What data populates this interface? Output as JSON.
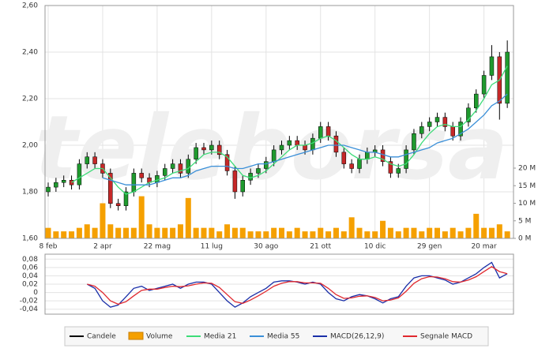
{
  "watermark": "teleborsa",
  "chart_data": [
    {
      "type": "candlestick",
      "categories": [
        "8 feb",
        null,
        null,
        null,
        null,
        null,
        null,
        "2 apr",
        null,
        null,
        null,
        null,
        null,
        null,
        "22 mag",
        null,
        null,
        null,
        null,
        null,
        null,
        "11 lug",
        null,
        null,
        null,
        null,
        null,
        null,
        "30 ago",
        null,
        null,
        null,
        null,
        null,
        null,
        "21 ott",
        null,
        null,
        null,
        null,
        null,
        null,
        "10 dic",
        null,
        null,
        null,
        null,
        null,
        null,
        "29 gen",
        null,
        null,
        null,
        null,
        null,
        null,
        "20 mar",
        null,
        null,
        null
      ],
      "candles": {
        "name": "Candele",
        "color": "#000000",
        "up_color": "#1f9a2e",
        "down_color": "#c62828",
        "open": [
          1.8,
          1.82,
          1.84,
          1.85,
          1.83,
          1.92,
          1.95,
          1.92,
          1.88,
          1.75,
          1.74,
          1.8,
          1.88,
          1.86,
          1.84,
          1.87,
          1.9,
          1.92,
          1.88,
          1.94,
          1.99,
          1.98,
          2.0,
          1.96,
          1.89,
          1.8,
          1.85,
          1.88,
          1.9,
          1.93,
          1.98,
          2.0,
          2.02,
          2.0,
          1.98,
          2.03,
          2.08,
          2.04,
          1.97,
          1.92,
          1.9,
          1.94,
          1.97,
          1.98,
          1.93,
          1.88,
          1.9,
          1.98,
          2.05,
          2.08,
          2.1,
          2.12,
          2.08,
          2.04,
          2.1,
          2.16,
          2.22,
          2.3,
          2.38,
          2.18
        ],
        "high": [
          1.84,
          1.86,
          1.87,
          1.87,
          1.94,
          1.97,
          1.97,
          1.94,
          1.9,
          1.77,
          1.82,
          1.9,
          1.9,
          1.88,
          1.89,
          1.92,
          1.94,
          1.94,
          1.96,
          2.01,
          2.01,
          2.02,
          2.02,
          1.98,
          1.91,
          1.87,
          1.9,
          1.92,
          1.95,
          2.0,
          2.02,
          2.04,
          2.04,
          2.02,
          2.05,
          2.1,
          2.1,
          2.06,
          1.99,
          1.94,
          1.96,
          1.99,
          2.0,
          2.0,
          1.95,
          1.92,
          2.0,
          2.07,
          2.1,
          2.12,
          2.14,
          2.14,
          2.1,
          2.12,
          2.18,
          2.24,
          2.32,
          2.43,
          2.4,
          2.45
        ],
        "low": [
          1.78,
          1.8,
          1.82,
          1.81,
          1.81,
          1.9,
          1.9,
          1.86,
          1.73,
          1.72,
          1.72,
          1.78,
          1.84,
          1.82,
          1.82,
          1.85,
          1.88,
          1.86,
          1.86,
          1.92,
          1.96,
          1.96,
          1.94,
          1.87,
          1.77,
          1.78,
          1.83,
          1.86,
          1.88,
          1.91,
          1.96,
          1.98,
          1.98,
          1.96,
          1.96,
          2.01,
          2.02,
          1.95,
          1.9,
          1.88,
          1.88,
          1.92,
          1.95,
          1.91,
          1.86,
          1.86,
          1.88,
          1.96,
          2.03,
          2.06,
          2.08,
          2.06,
          2.02,
          2.02,
          2.08,
          2.14,
          2.2,
          2.28,
          2.11,
          2.16
        ],
        "close": [
          1.82,
          1.84,
          1.85,
          1.83,
          1.92,
          1.95,
          1.92,
          1.88,
          1.75,
          1.74,
          1.8,
          1.88,
          1.86,
          1.84,
          1.87,
          1.9,
          1.92,
          1.88,
          1.94,
          1.99,
          1.98,
          2.0,
          1.96,
          1.89,
          1.8,
          1.85,
          1.88,
          1.9,
          1.93,
          1.98,
          2.0,
          2.02,
          2.0,
          1.98,
          2.03,
          2.08,
          2.04,
          1.97,
          1.92,
          1.9,
          1.94,
          1.97,
          1.98,
          1.93,
          1.88,
          1.9,
          1.98,
          2.05,
          2.08,
          2.1,
          2.12,
          2.08,
          2.04,
          2.1,
          2.16,
          2.22,
          2.3,
          2.38,
          2.18,
          2.4
        ]
      },
      "volume": {
        "name": "Volume",
        "color": "#f5a000",
        "axis": "y2",
        "values": [
          3,
          2,
          2,
          2,
          3,
          4,
          3,
          10,
          4,
          3,
          3,
          3,
          12,
          4,
          3,
          3,
          3,
          4,
          11.5,
          3,
          3,
          3,
          2,
          4,
          3,
          3,
          2,
          2,
          2,
          3,
          3,
          2,
          3,
          2,
          2,
          3,
          2,
          3,
          2,
          6,
          3,
          2,
          2,
          5,
          3,
          2,
          3,
          3,
          2,
          3,
          3,
          2,
          3,
          2,
          3,
          7,
          3,
          3,
          4,
          2
        ]
      },
      "series": [
        {
          "name": "Media 21",
          "color": "#3ddc78",
          "values": [
            null,
            null,
            null,
            1.84,
            1.86,
            1.88,
            1.9,
            1.9,
            1.86,
            1.82,
            1.79,
            1.8,
            1.82,
            1.84,
            1.85,
            1.86,
            1.88,
            1.89,
            1.9,
            1.93,
            1.96,
            1.97,
            1.97,
            1.95,
            1.91,
            1.87,
            1.86,
            1.87,
            1.89,
            1.92,
            1.95,
            1.98,
            2.0,
            2.0,
            2.01,
            2.03,
            2.04,
            2.02,
            1.99,
            1.96,
            1.94,
            1.94,
            1.95,
            1.94,
            1.92,
            1.91,
            1.92,
            1.96,
            2.01,
            2.05,
            2.08,
            2.09,
            2.08,
            2.08,
            2.11,
            2.15,
            2.2,
            2.26,
            2.28,
            2.34
          ]
        },
        {
          "name": "Media 55",
          "color": "#3a8fd8",
          "values": [
            null,
            null,
            null,
            null,
            null,
            null,
            null,
            1.86,
            1.85,
            1.84,
            1.83,
            1.83,
            1.83,
            1.83,
            1.84,
            1.85,
            1.86,
            1.86,
            1.87,
            1.89,
            1.9,
            1.91,
            1.91,
            1.91,
            1.9,
            1.9,
            1.91,
            1.92,
            1.92,
            1.93,
            1.94,
            1.95,
            1.96,
            1.97,
            1.98,
            1.99,
            2.0,
            2.0,
            2.0,
            1.99,
            1.98,
            1.97,
            1.97,
            1.96,
            1.95,
            1.95,
            1.96,
            1.97,
            1.98,
            1.99,
            2.01,
            2.02,
            2.03,
            2.05,
            2.07,
            2.1,
            2.13,
            2.17,
            2.19,
            2.22
          ]
        }
      ],
      "ylim": [
        1.6,
        2.6
      ],
      "yticks": [
        {
          "value": 1.6,
          "label": "1,60"
        },
        {
          "value": 1.8,
          "label": "1,80"
        },
        {
          "value": 2.0,
          "label": "2,00"
        },
        {
          "value": 2.2,
          "label": "2,20"
        },
        {
          "value": 2.4,
          "label": "2,40"
        },
        {
          "value": 2.6,
          "label": "2,60"
        }
      ],
      "y2lim": [
        0,
        66.3
      ],
      "y2ticks": [
        {
          "value": 0,
          "label": "0 M"
        },
        {
          "value": 5,
          "label": "5 M"
        },
        {
          "value": 10,
          "label": "10 M"
        },
        {
          "value": 15,
          "label": "15 M"
        },
        {
          "value": 20,
          "label": "20 M"
        }
      ],
      "grid": true
    },
    {
      "type": "line",
      "series": [
        {
          "name": "MACD(26,12,9)",
          "color": "#1a2fa8",
          "values": [
            null,
            null,
            null,
            null,
            null,
            0.02,
            0.01,
            -0.02,
            -0.035,
            -0.03,
            -0.01,
            0.01,
            0.015,
            0.005,
            0.01,
            0.015,
            0.02,
            0.01,
            0.02,
            0.025,
            0.025,
            0.02,
            0.0,
            -0.02,
            -0.035,
            -0.025,
            -0.01,
            0.0,
            0.01,
            0.025,
            0.028,
            0.028,
            0.025,
            0.02,
            0.025,
            0.02,
            0.0,
            -0.015,
            -0.02,
            -0.01,
            -0.005,
            -0.008,
            -0.015,
            -0.025,
            -0.015,
            -0.01,
            0.015,
            0.035,
            0.04,
            0.04,
            0.035,
            0.03,
            0.02,
            0.025,
            0.035,
            0.045,
            0.06,
            0.072,
            0.035,
            0.045
          ]
        },
        {
          "name": "Segnale MACD",
          "color": "#e0282e",
          "values": [
            null,
            null,
            null,
            null,
            null,
            0.02,
            0.015,
            0.0,
            -0.02,
            -0.028,
            -0.022,
            -0.008,
            0.005,
            0.008,
            0.008,
            0.012,
            0.015,
            0.014,
            0.016,
            0.02,
            0.023,
            0.022,
            0.012,
            -0.005,
            -0.022,
            -0.026,
            -0.018,
            -0.008,
            0.003,
            0.015,
            0.022,
            0.026,
            0.026,
            0.023,
            0.023,
            0.022,
            0.01,
            -0.005,
            -0.014,
            -0.013,
            -0.009,
            -0.008,
            -0.012,
            -0.02,
            -0.018,
            -0.013,
            0.003,
            0.022,
            0.033,
            0.038,
            0.037,
            0.033,
            0.026,
            0.025,
            0.03,
            0.038,
            0.05,
            0.062,
            0.05,
            0.045
          ]
        }
      ],
      "ylim": [
        -0.05,
        0.09
      ],
      "yticks": [
        {
          "value": 0.08,
          "label": "0,08"
        },
        {
          "value": 0.06,
          "label": "0,06"
        },
        {
          "value": 0.04,
          "label": "0,04"
        },
        {
          "value": 0.02,
          "label": "0,02"
        },
        0,
        {
          "value": -0.02,
          "label": "-0,02"
        },
        {
          "value": -0.04,
          "label": "-0,04"
        }
      ],
      "grid": true
    }
  ]
}
